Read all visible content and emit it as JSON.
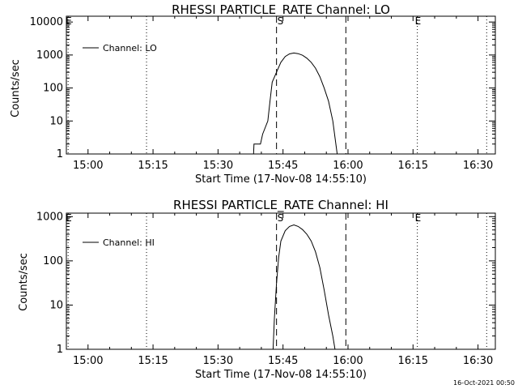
{
  "footer": {
    "timestamp": "16-Oct-2021 00:50"
  },
  "chart_data": [
    {
      "type": "line",
      "title": "RHESSI PARTICLE_RATE Channel: LO",
      "xlabel": "Start Time (17-Nov-08 14:55:10)",
      "ylabel": "Counts/sec",
      "yscale": "log",
      "xlim_min": [
        0,
        99
      ],
      "ylim": [
        1,
        15000
      ],
      "xticks": [
        {
          "t": 5,
          "label": "15:00"
        },
        {
          "t": 20,
          "label": "15:15"
        },
        {
          "t": 35,
          "label": "15:30"
        },
        {
          "t": 50,
          "label": "15:45"
        },
        {
          "t": 65,
          "label": "16:00"
        },
        {
          "t": 80,
          "label": "16:15"
        },
        {
          "t": 95,
          "label": "16:30"
        }
      ],
      "yticks": [
        {
          "v": 1,
          "label": "1"
        },
        {
          "v": 10,
          "label": "10"
        },
        {
          "v": 100,
          "label": "100"
        },
        {
          "v": 1000,
          "label": "1000"
        },
        {
          "v": 10000,
          "label": "10000"
        }
      ],
      "legend": {
        "entry": "Channel: LO",
        "position": "top-left"
      },
      "dotted_lines": [
        18.5,
        97
      ],
      "dashed_lines": [
        {
          "t": 48.5,
          "label": "S"
        },
        {
          "t": 64.5,
          "label": ""
        }
      ],
      "marker_lines": [
        {
          "t": 0.4,
          "label": "E"
        },
        {
          "t": 81,
          "label": "E"
        }
      ],
      "series": [
        {
          "x": [
            43.2,
            43.3,
            44.8,
            45.3,
            46.5,
            47.0,
            47.5,
            48.5,
            49.5,
            50.5,
            51.5,
            52.5,
            53.5,
            54.5,
            55.5,
            56.5,
            57.5,
            58.5,
            59.5,
            60.5,
            61.5,
            62.5
          ],
          "y": [
            1,
            2,
            2,
            4,
            10,
            40,
            150,
            300,
            600,
            900,
            1080,
            1150,
            1100,
            980,
            800,
            600,
            400,
            220,
            100,
            40,
            10,
            1
          ]
        }
      ]
    },
    {
      "type": "line",
      "title": "RHESSI PARTICLE_RATE Channel: HI",
      "xlabel": "Start Time (17-Nov-08 14:55:10)",
      "ylabel": "Counts/sec",
      "yscale": "log",
      "xlim_min": [
        0,
        99
      ],
      "ylim": [
        1,
        1200
      ],
      "xticks": [
        {
          "t": 5,
          "label": "15:00"
        },
        {
          "t": 20,
          "label": "15:15"
        },
        {
          "t": 35,
          "label": "15:30"
        },
        {
          "t": 50,
          "label": "15:45"
        },
        {
          "t": 65,
          "label": "16:00"
        },
        {
          "t": 80,
          "label": "16:15"
        },
        {
          "t": 95,
          "label": "16:30"
        }
      ],
      "yticks": [
        {
          "v": 1,
          "label": "1"
        },
        {
          "v": 10,
          "label": "10"
        },
        {
          "v": 100,
          "label": "100"
        },
        {
          "v": 1000,
          "label": "1000"
        }
      ],
      "legend": {
        "entry": "Channel: HI",
        "position": "top-left"
      },
      "dotted_lines": [
        18.5,
        97
      ],
      "dashed_lines": [
        {
          "t": 48.5,
          "label": "S"
        },
        {
          "t": 64.5,
          "label": ""
        }
      ],
      "marker_lines": [
        {
          "t": 0.4,
          "label": "E"
        },
        {
          "t": 81,
          "label": "E"
        }
      ],
      "series": [
        {
          "x": [
            47.7,
            48.0,
            48.5,
            49.0,
            49.5,
            50.5,
            51.5,
            52.5,
            53.5,
            54.5,
            55.5,
            56.5,
            57.5,
            58.5,
            59.5,
            60.5,
            61.5,
            62.0
          ],
          "y": [
            1,
            5,
            30,
            120,
            280,
            480,
            600,
            650,
            600,
            510,
            400,
            280,
            160,
            70,
            22,
            6,
            2,
            1
          ]
        }
      ]
    }
  ]
}
